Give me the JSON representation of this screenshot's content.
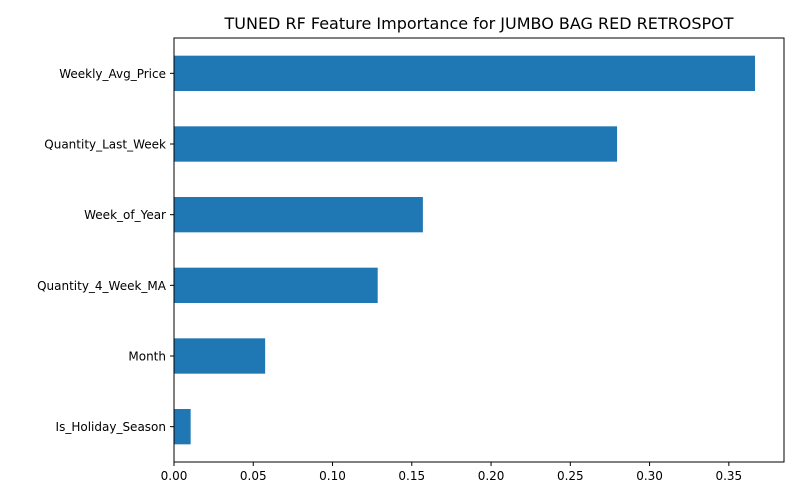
{
  "chart_data": {
    "type": "bar",
    "orientation": "horizontal",
    "title": "TUNED RF Feature Importance for JUMBO BAG RED RETROSPOT",
    "xlabel": "",
    "ylabel": "",
    "categories": [
      "Is_Holiday_Season",
      "Month",
      "Quantity_4_Week_MA",
      "Week_of_Year",
      "Quantity_Last_Week",
      "Weekly_Avg_Price"
    ],
    "values": [
      0.0105,
      0.0575,
      0.1285,
      0.157,
      0.2795,
      0.3665
    ],
    "xlim": [
      0.0,
      0.3848
    ],
    "xticks": [
      "0.00",
      "0.05",
      "0.10",
      "0.15",
      "0.20",
      "0.25",
      "0.30",
      "0.35"
    ],
    "bar_color": "#1f77b4",
    "grid": false,
    "legend": "none"
  }
}
